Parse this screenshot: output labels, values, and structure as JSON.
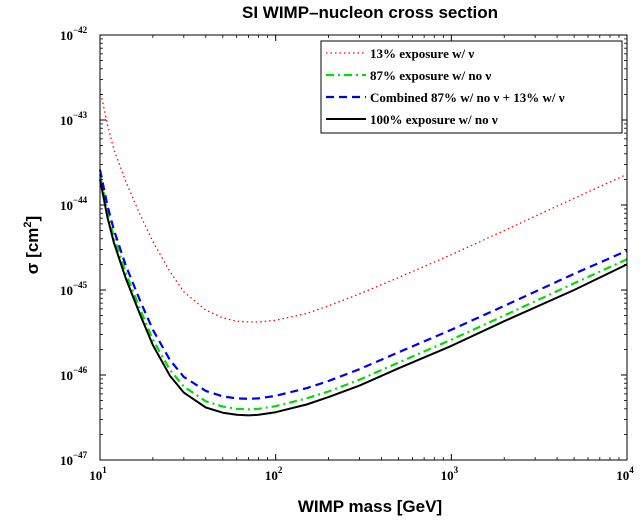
{
  "chart_data": {
    "type": "line",
    "title": "SI WIMP–nucleon cross section",
    "xlabel": "WIMP mass [GeV]",
    "ylabel": "σ [cm",
    "ylabel_sup": "2",
    "ylabel_end": "]",
    "xscale": "log",
    "yscale": "log",
    "xlim": [
      10,
      10000
    ],
    "ylim": [
      1e-47,
      1e-42
    ],
    "grid": false,
    "legend_position": "top-right",
    "xticks": [
      {
        "value": 10,
        "base": "10",
        "exp": "1"
      },
      {
        "value": 100,
        "base": "10",
        "exp": "2"
      },
      {
        "value": 1000,
        "base": "10",
        "exp": "3"
      },
      {
        "value": 10000,
        "base": "10",
        "exp": "4"
      }
    ],
    "yticks": [
      {
        "value": 1e-47,
        "base": "10",
        "exp": "−47"
      },
      {
        "value": 1e-46,
        "base": "10",
        "exp": "−46"
      },
      {
        "value": 1e-45,
        "base": "10",
        "exp": "−45"
      },
      {
        "value": 1e-44,
        "base": "10",
        "exp": "−44"
      },
      {
        "value": 1e-43,
        "base": "10",
        "exp": "−43"
      },
      {
        "value": 1e-42,
        "base": "10",
        "exp": "−42"
      }
    ],
    "series": [
      {
        "name": "13% exposure w/ ν",
        "color": "#ff0000",
        "style": "dotted",
        "x": [
          10,
          11,
          12,
          14,
          17,
          20,
          25,
          30,
          40,
          50,
          60,
          70,
          80,
          100,
          150,
          200,
          300,
          500,
          1000,
          2000,
          5000,
          10000
        ],
        "y": [
          2.3e-43,
          9e-44,
          4.5e-44,
          1.9e-44,
          7.5e-45,
          3.7e-45,
          1.65e-45,
          9.5e-46,
          5.8e-46,
          4.7e-46,
          4.3e-46,
          4.2e-46,
          4.2e-46,
          4.4e-46,
          5.3e-46,
          6.5e-46,
          9e-46,
          1.4e-45,
          2.6e-45,
          5e-45,
          1.2e-44,
          2.3e-44
        ]
      },
      {
        "name": "87% exposure w/ no ν",
        "color": "#00dd00",
        "style": "dashdot",
        "x": [
          10,
          11,
          12,
          14,
          17,
          20,
          25,
          30,
          40,
          50,
          60,
          70,
          80,
          100,
          150,
          200,
          300,
          500,
          1000,
          2000,
          5000,
          10000
        ],
        "y": [
          2.3e-44,
          8.5e-45,
          4.2e-45,
          1.6e-45,
          5.8e-46,
          2.6e-46,
          1.15e-46,
          7.3e-47,
          4.9e-47,
          4.25e-47,
          4e-47,
          3.95e-47,
          4e-47,
          4.3e-47,
          5.3e-47,
          6.4e-47,
          8.8e-47,
          1.4e-46,
          2.6e-46,
          5e-46,
          1.2e-45,
          2.3e-45
        ]
      },
      {
        "name": "Combined 87% w/ no ν + 13% w/ ν",
        "color": "#0000ee",
        "style": "dashed",
        "x": [
          10,
          11,
          12,
          14,
          17,
          20,
          25,
          30,
          40,
          50,
          60,
          70,
          80,
          100,
          150,
          200,
          300,
          500,
          1000,
          2000,
          5000,
          10000
        ],
        "y": [
          2.6e-44,
          1e-44,
          5.1e-45,
          1.95e-45,
          7.3e-46,
          3.4e-46,
          1.5e-46,
          9.5e-47,
          6.5e-47,
          5.6e-47,
          5.3e-47,
          5.25e-47,
          5.3e-47,
          5.7e-47,
          7e-47,
          8.5e-47,
          1.17e-46,
          1.85e-46,
          3.4e-46,
          6.5e-46,
          1.55e-45,
          2.9e-45
        ]
      },
      {
        "name": "100% exposure w/ no ν",
        "color": "#000000",
        "style": "solid",
        "x": [
          10,
          11,
          12,
          14,
          17,
          20,
          25,
          30,
          40,
          50,
          60,
          70,
          80,
          100,
          150,
          200,
          300,
          500,
          1000,
          2000,
          5000,
          10000
        ],
        "y": [
          2e-44,
          7.3e-45,
          3.6e-45,
          1.38e-45,
          5e-46,
          2.25e-46,
          9.8e-47,
          6.2e-47,
          4.15e-47,
          3.6e-47,
          3.4e-47,
          3.35e-47,
          3.4e-47,
          3.65e-47,
          4.5e-47,
          5.5e-47,
          7.5e-47,
          1.2e-46,
          2.2e-46,
          4.3e-46,
          1e-45,
          2e-45
        ]
      }
    ]
  }
}
